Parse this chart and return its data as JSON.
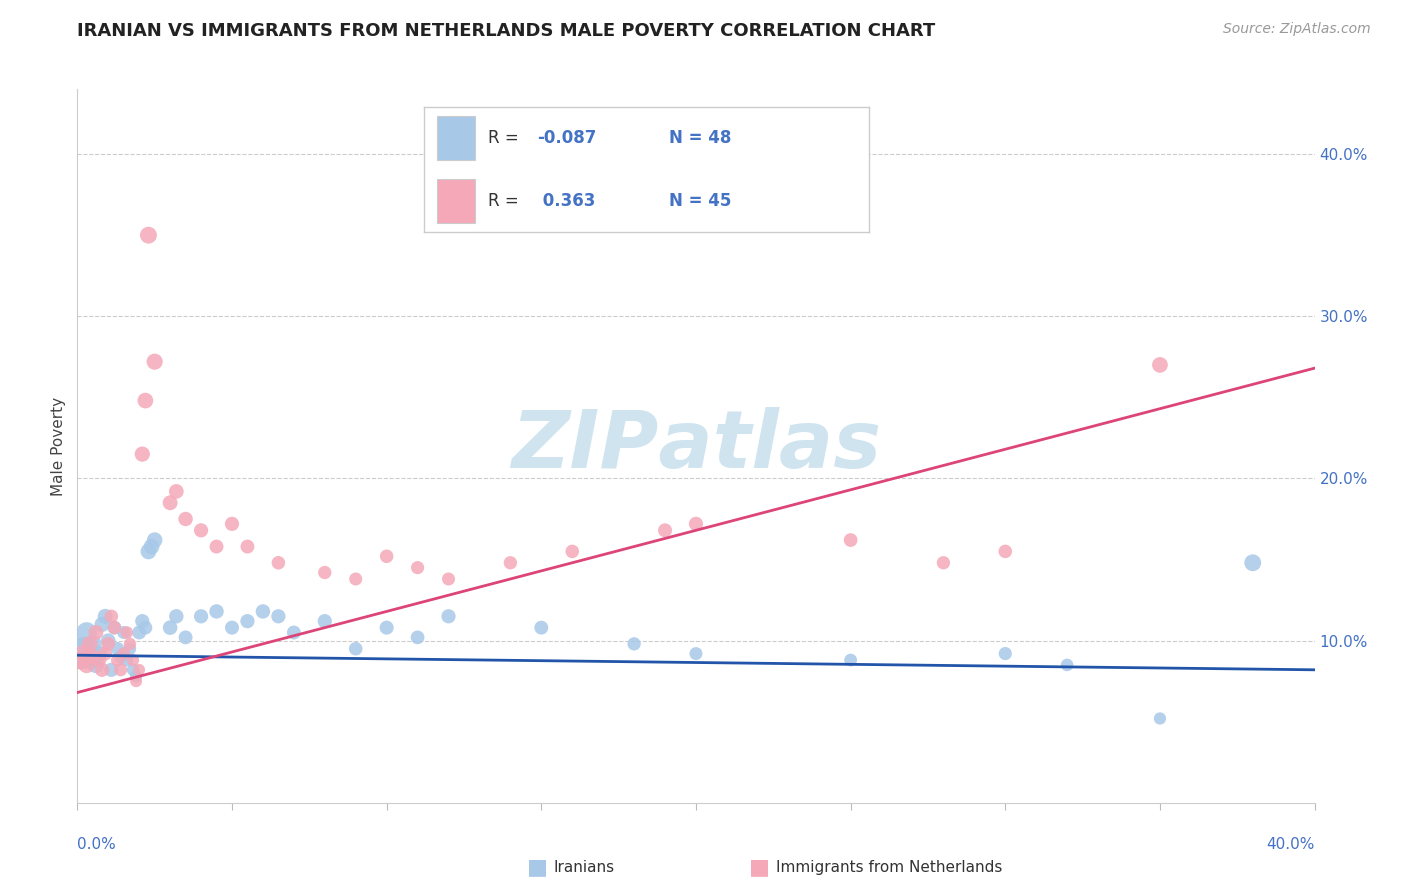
{
  "title": "IRANIAN VS IMMIGRANTS FROM NETHERLANDS MALE POVERTY CORRELATION CHART",
  "source": "Source: ZipAtlas.com",
  "ylabel": "Male Poverty",
  "iranians_color": "#a8c8e8",
  "netherlands_color": "#f4a8b8",
  "iranians_line_color": "#2255aa",
  "netherlands_line_color": "#dd4477",
  "iranians_legend_color": "#a8c8e8",
  "netherlands_legend_color": "#f4a8b8",
  "watermark_color": "#d0e4f0",
  "xlim": [
    0.0,
    0.4
  ],
  "ylim": [
    0.0,
    0.44
  ],
  "iran_line_x0": 0.0,
  "iran_line_y0": 0.091,
  "iran_line_x1": 0.4,
  "iran_line_y1": 0.082,
  "neth_line_x0": 0.0,
  "neth_line_y0": 0.068,
  "neth_line_x1": 0.4,
  "neth_line_y1": 0.268,
  "iranians_data": [
    [
      0.001,
      0.092
    ],
    [
      0.002,
      0.095
    ],
    [
      0.003,
      0.105
    ],
    [
      0.004,
      0.088
    ],
    [
      0.005,
      0.098
    ],
    [
      0.006,
      0.085
    ],
    [
      0.007,
      0.092
    ],
    [
      0.008,
      0.11
    ],
    [
      0.009,
      0.115
    ],
    [
      0.01,
      0.1
    ],
    [
      0.011,
      0.082
    ],
    [
      0.012,
      0.108
    ],
    [
      0.013,
      0.095
    ],
    [
      0.014,
      0.09
    ],
    [
      0.015,
      0.105
    ],
    [
      0.016,
      0.088
    ],
    [
      0.017,
      0.095
    ],
    [
      0.018,
      0.082
    ],
    [
      0.019,
      0.078
    ],
    [
      0.02,
      0.105
    ],
    [
      0.021,
      0.112
    ],
    [
      0.022,
      0.108
    ],
    [
      0.023,
      0.155
    ],
    [
      0.024,
      0.158
    ],
    [
      0.025,
      0.162
    ],
    [
      0.03,
      0.108
    ],
    [
      0.032,
      0.115
    ],
    [
      0.035,
      0.102
    ],
    [
      0.04,
      0.115
    ],
    [
      0.045,
      0.118
    ],
    [
      0.05,
      0.108
    ],
    [
      0.055,
      0.112
    ],
    [
      0.06,
      0.118
    ],
    [
      0.065,
      0.115
    ],
    [
      0.07,
      0.105
    ],
    [
      0.08,
      0.112
    ],
    [
      0.09,
      0.095
    ],
    [
      0.1,
      0.108
    ],
    [
      0.11,
      0.102
    ],
    [
      0.12,
      0.115
    ],
    [
      0.15,
      0.108
    ],
    [
      0.18,
      0.098
    ],
    [
      0.2,
      0.092
    ],
    [
      0.25,
      0.088
    ],
    [
      0.3,
      0.092
    ],
    [
      0.32,
      0.085
    ],
    [
      0.35,
      0.052
    ],
    [
      0.38,
      0.148
    ]
  ],
  "netherlands_data": [
    [
      0.001,
      0.088
    ],
    [
      0.002,
      0.092
    ],
    [
      0.003,
      0.085
    ],
    [
      0.004,
      0.098
    ],
    [
      0.005,
      0.09
    ],
    [
      0.006,
      0.105
    ],
    [
      0.007,
      0.088
    ],
    [
      0.008,
      0.082
    ],
    [
      0.009,
      0.092
    ],
    [
      0.01,
      0.098
    ],
    [
      0.011,
      0.115
    ],
    [
      0.012,
      0.108
    ],
    [
      0.013,
      0.088
    ],
    [
      0.014,
      0.082
    ],
    [
      0.015,
      0.092
    ],
    [
      0.016,
      0.105
    ],
    [
      0.017,
      0.098
    ],
    [
      0.018,
      0.088
    ],
    [
      0.019,
      0.075
    ],
    [
      0.02,
      0.082
    ],
    [
      0.021,
      0.215
    ],
    [
      0.022,
      0.248
    ],
    [
      0.023,
      0.35
    ],
    [
      0.025,
      0.272
    ],
    [
      0.03,
      0.185
    ],
    [
      0.032,
      0.192
    ],
    [
      0.035,
      0.175
    ],
    [
      0.04,
      0.168
    ],
    [
      0.045,
      0.158
    ],
    [
      0.05,
      0.172
    ],
    [
      0.055,
      0.158
    ],
    [
      0.065,
      0.148
    ],
    [
      0.08,
      0.142
    ],
    [
      0.09,
      0.138
    ],
    [
      0.1,
      0.152
    ],
    [
      0.11,
      0.145
    ],
    [
      0.12,
      0.138
    ],
    [
      0.14,
      0.148
    ],
    [
      0.16,
      0.155
    ],
    [
      0.19,
      0.168
    ],
    [
      0.2,
      0.172
    ],
    [
      0.25,
      0.162
    ],
    [
      0.28,
      0.148
    ],
    [
      0.3,
      0.155
    ],
    [
      0.35,
      0.27
    ]
  ],
  "iran_point_sizes": [
    500,
    280,
    220,
    180,
    160,
    140,
    130,
    120,
    115,
    110,
    105,
    100,
    95,
    90,
    88,
    85,
    82,
    80,
    78,
    100,
    105,
    100,
    130,
    128,
    125,
    110,
    108,
    100,
    105,
    108,
    102,
    105,
    108,
    105,
    100,
    105,
    95,
    102,
    98,
    105,
    100,
    92,
    88,
    85,
    90,
    82,
    78,
    148
  ],
  "neth_point_sizes": [
    180,
    160,
    140,
    130,
    120,
    115,
    110,
    105,
    100,
    98,
    95,
    92,
    90,
    88,
    85,
    82,
    80,
    78,
    75,
    72,
    120,
    128,
    148,
    135,
    115,
    112,
    108,
    105,
    100,
    105,
    100,
    95,
    92,
    88,
    95,
    90,
    88,
    92,
    95,
    102,
    105,
    98,
    92,
    95,
    128
  ]
}
